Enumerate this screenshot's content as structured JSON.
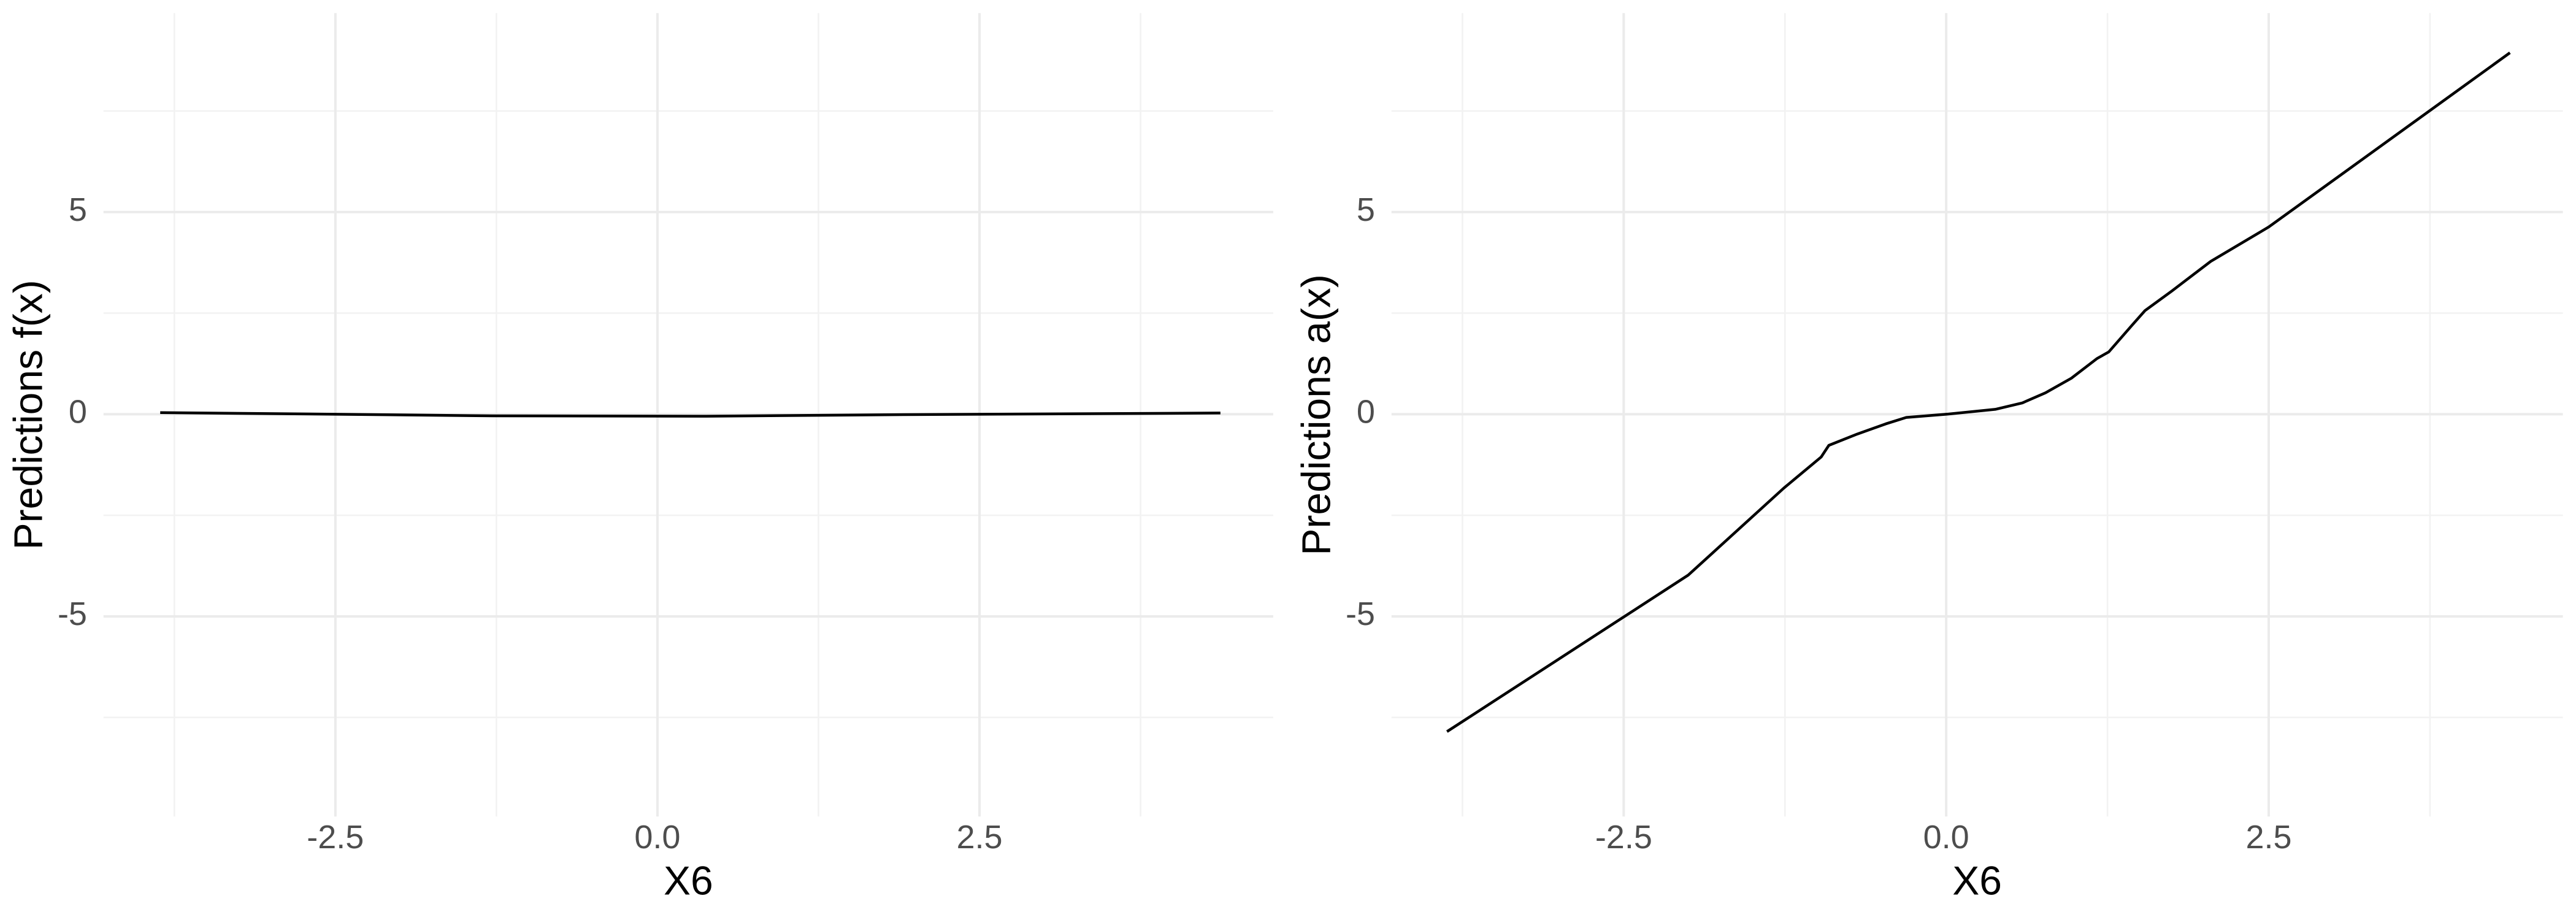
{
  "chart_data": [
    {
      "type": "line",
      "xlabel": "X6",
      "ylabel": "Predictions f(x)",
      "x": [
        -3.86,
        -2.5,
        -1.28,
        0.38,
        1.91,
        4.37
      ],
      "values": [
        0.04,
        0.0,
        -0.04,
        -0.05,
        -0.01,
        0.03
      ],
      "color": "#000000",
      "xlim": [
        -4.3,
        4.78
      ],
      "ylim": [
        -9.95,
        9.92
      ],
      "xticks": [
        -2.5,
        {
          "value": 0,
          "label": "0.0"
        },
        2.5
      ],
      "yticks": [
        -5,
        0,
        5
      ],
      "grid": true
    },
    {
      "type": "line",
      "xlabel": "X6",
      "ylabel": "Predictions a(x)",
      "x": [
        -3.87,
        -2.0,
        -1.26,
        -0.97,
        -0.91,
        -0.69,
        -0.47,
        -0.31,
        0.0,
        0.38,
        0.59,
        0.77,
        0.97,
        1.17,
        1.26,
        1.44,
        1.54,
        1.75,
        2.05,
        2.5,
        4.37
      ],
      "values": [
        -7.85,
        -3.98,
        -1.83,
        -1.06,
        -0.77,
        -0.49,
        -0.24,
        -0.08,
        0.0,
        0.12,
        0.28,
        0.53,
        0.89,
        1.38,
        1.54,
        2.2,
        2.56,
        3.05,
        3.78,
        4.63,
        8.94
      ],
      "color": "#000000",
      "xlim": [
        -4.3,
        4.78
      ],
      "ylim": [
        -9.95,
        9.92
      ],
      "xticks": [
        -2.5,
        {
          "value": 0,
          "label": "0.0"
        },
        2.5
      ],
      "yticks": [
        -5,
        0,
        5
      ],
      "grid": true
    }
  ]
}
